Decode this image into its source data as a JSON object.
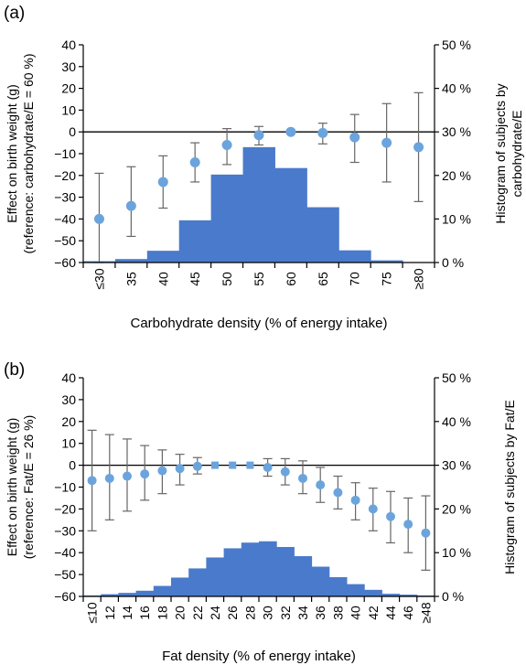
{
  "chart_data": [
    {
      "panel_label": "(a)",
      "type": "bar",
      "title": "",
      "xlabel": "Carbohydrate density (% of energy intake)",
      "ylabel": "Effect on birth weight (g)",
      "ylabel2": "(reference: carbohydrate/E = 60 %)",
      "y2label": "Histogram of subjects by",
      "y2label2": "carbohydrate/E",
      "ylim": [
        -60,
        40
      ],
      "yticks": [
        "40",
        "30",
        "20",
        "10",
        "0",
        "−10",
        "−20",
        "−30",
        "−40",
        "−50",
        "−60"
      ],
      "y2lim": [
        0,
        50
      ],
      "y2ticks": [
        "50 %",
        "40 %",
        "30 %",
        "20 %",
        "10 %",
        "0 %"
      ],
      "categories": [
        "≤30",
        "35",
        "40",
        "45",
        "50",
        "55",
        "60",
        "65",
        "70",
        "75",
        "≥80"
      ],
      "histogram_percent": [
        0.3,
        0.8,
        2.7,
        9.7,
        20.2,
        26.5,
        21.7,
        12.7,
        2.8,
        0.5,
        0
      ],
      "effect": [
        -40,
        -34,
        -23,
        -14,
        -6,
        -1.5,
        0,
        -0.5,
        -2.5,
        -5,
        -7
      ],
      "ci_lower": [
        -60,
        -48,
        -35,
        -23,
        -15,
        -6,
        0,
        -5.5,
        -14,
        -23,
        -32
      ],
      "ci_upper": [
        -19,
        -16,
        -11,
        -5,
        1.5,
        2.5,
        0,
        4,
        8,
        13,
        18
      ],
      "reference_line": 0,
      "colors": {
        "bar": "#4a7acb",
        "point": "#6ba4dc",
        "errorbar": "#666666",
        "axis": "#000000"
      }
    },
    {
      "panel_label": "(b)",
      "type": "bar",
      "title": "",
      "xlabel": "Fat density (% of energy intake)",
      "ylabel": "Effect on birth weight (g)",
      "ylabel2": "(reference: Fat/E = 26 %)",
      "y2label": "Histogram of subjects by Fat/E",
      "y2label2": "",
      "ylim": [
        -60,
        40
      ],
      "yticks": [
        "40",
        "30",
        "20",
        "10",
        "0",
        "−10",
        "−20",
        "−30",
        "−40",
        "−50",
        "−60"
      ],
      "y2lim": [
        0,
        50
      ],
      "y2ticks": [
        "50 %",
        "40 %",
        "30 %",
        "20 %",
        "10 %",
        "0 %"
      ],
      "categories": [
        "≤10",
        "12",
        "14",
        "16",
        "18",
        "20",
        "22",
        "24",
        "26",
        "28",
        "30",
        "32",
        "34",
        "36",
        "38",
        "40",
        "42",
        "44",
        "46",
        "≥48"
      ],
      "histogram_percent": [
        0.2,
        0.5,
        0.8,
        1.3,
        2.4,
        4.3,
        6.4,
        8.9,
        11.0,
        12.3,
        12.6,
        11.3,
        9.2,
        6.8,
        4.4,
        2.8,
        1.5,
        0.6,
        0.4,
        0.2
      ],
      "effect": [
        -7,
        -6,
        -5,
        -4,
        -2.5,
        -1.5,
        -0.5,
        0,
        0,
        0,
        -1,
        -3,
        -6,
        -9,
        -12.5,
        -16,
        -20,
        -23.5,
        -27,
        -31
      ],
      "ci_lower": [
        -30,
        -25,
        -21,
        -16,
        -13,
        -9,
        -4,
        0,
        0,
        0,
        -5,
        -9,
        -13,
        -17,
        -20,
        -25,
        -30,
        -35.5,
        -40,
        -48
      ],
      "ci_upper": [
        16,
        14,
        12,
        9,
        7,
        5,
        3.5,
        0,
        0,
        0,
        3,
        3,
        2,
        -1,
        -5,
        -8,
        -10.5,
        -12,
        -15,
        -14
      ],
      "reference_line": 0,
      "colors": {
        "bar": "#4a7acb",
        "point": "#6ba4dc",
        "errorbar": "#666666",
        "axis": "#000000"
      }
    }
  ]
}
